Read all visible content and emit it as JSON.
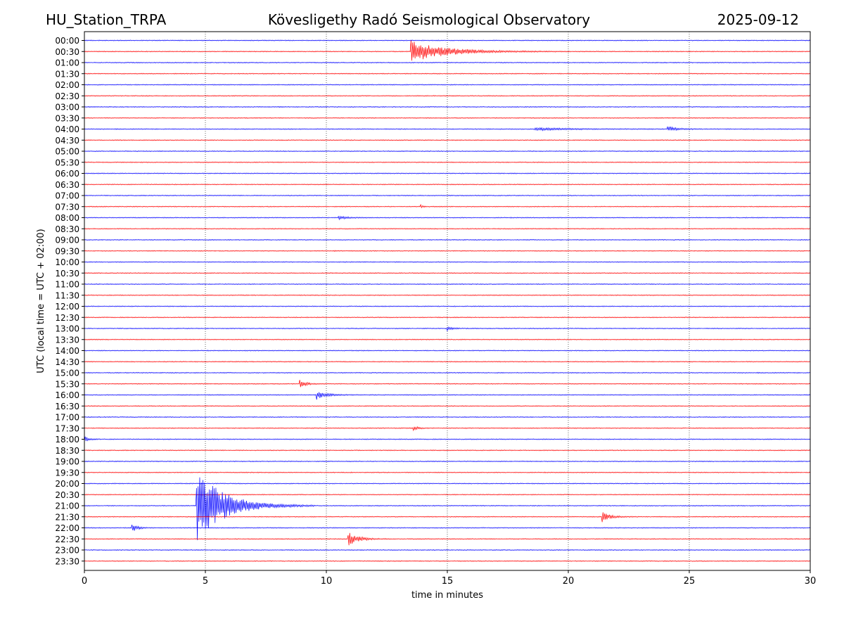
{
  "header": {
    "station": "HU_Station_TRPA",
    "observatory": "Kövesligethy Radó Seismological Observatory",
    "date": "2025-09-12"
  },
  "chart_data": {
    "type": "line",
    "title": "Kövesligethy Radó Seismological Observatory",
    "xlabel": "time in minutes",
    "ylabel": "UTC (local time = UTC + 02:00)",
    "xlim": [
      0,
      30
    ],
    "xticks": [
      0,
      5,
      10,
      15,
      20,
      25,
      30
    ],
    "grid": "vertical dotted at each x tick",
    "row_labels": [
      "00:00",
      "00:30",
      "01:00",
      "01:30",
      "02:00",
      "02:30",
      "03:00",
      "03:30",
      "04:00",
      "04:30",
      "05:00",
      "05:30",
      "06:00",
      "06:30",
      "07:00",
      "07:30",
      "08:00",
      "08:30",
      "09:00",
      "09:30",
      "10:00",
      "10:30",
      "11:00",
      "11:30",
      "12:00",
      "12:30",
      "13:00",
      "13:30",
      "14:00",
      "14:30",
      "15:00",
      "15:30",
      "16:00",
      "16:30",
      "17:00",
      "17:30",
      "18:00",
      "18:30",
      "19:00",
      "19:30",
      "20:00",
      "20:30",
      "21:00",
      "21:30",
      "22:00",
      "22:30",
      "23:00",
      "23:30"
    ],
    "trace_colors": [
      "#0000ff",
      "#ff0000"
    ],
    "noise_level": 0.06,
    "events": [
      {
        "row": "00:30",
        "start_min": 13.5,
        "amplitude": 1.3,
        "duration_min": 4.5
      },
      {
        "row": "04:00",
        "start_min": 24.1,
        "amplitude": 0.35,
        "duration_min": 1.2
      },
      {
        "row": "04:00",
        "start_min": 18.6,
        "amplitude": 0.18,
        "duration_min": 4.0
      },
      {
        "row": "07:30",
        "start_min": 13.9,
        "amplitude": 0.2,
        "duration_min": 0.3
      },
      {
        "row": "08:00",
        "start_min": 10.5,
        "amplitude": 0.2,
        "duration_min": 1.2
      },
      {
        "row": "13:00",
        "start_min": 15.0,
        "amplitude": 0.25,
        "duration_min": 0.7
      },
      {
        "row": "15:30",
        "start_min": 8.9,
        "amplitude": 0.45,
        "duration_min": 0.8
      },
      {
        "row": "16:00",
        "start_min": 9.6,
        "amplitude": 0.55,
        "duration_min": 1.2
      },
      {
        "row": "17:30",
        "start_min": 13.6,
        "amplitude": 0.3,
        "duration_min": 0.6
      },
      {
        "row": "18:00",
        "start_min": 0.0,
        "amplitude": 0.35,
        "duration_min": 0.6
      },
      {
        "row": "21:00",
        "start_min": 4.62,
        "amplitude": 4.5,
        "duration_min": 3.5
      },
      {
        "row": "21:30",
        "start_min": 21.4,
        "amplitude": 0.6,
        "duration_min": 1.0
      },
      {
        "row": "22:00",
        "start_min": 1.95,
        "amplitude": 0.55,
        "duration_min": 0.7
      },
      {
        "row": "22:30",
        "start_min": 10.9,
        "amplitude": 0.85,
        "duration_min": 1.2
      }
    ]
  }
}
